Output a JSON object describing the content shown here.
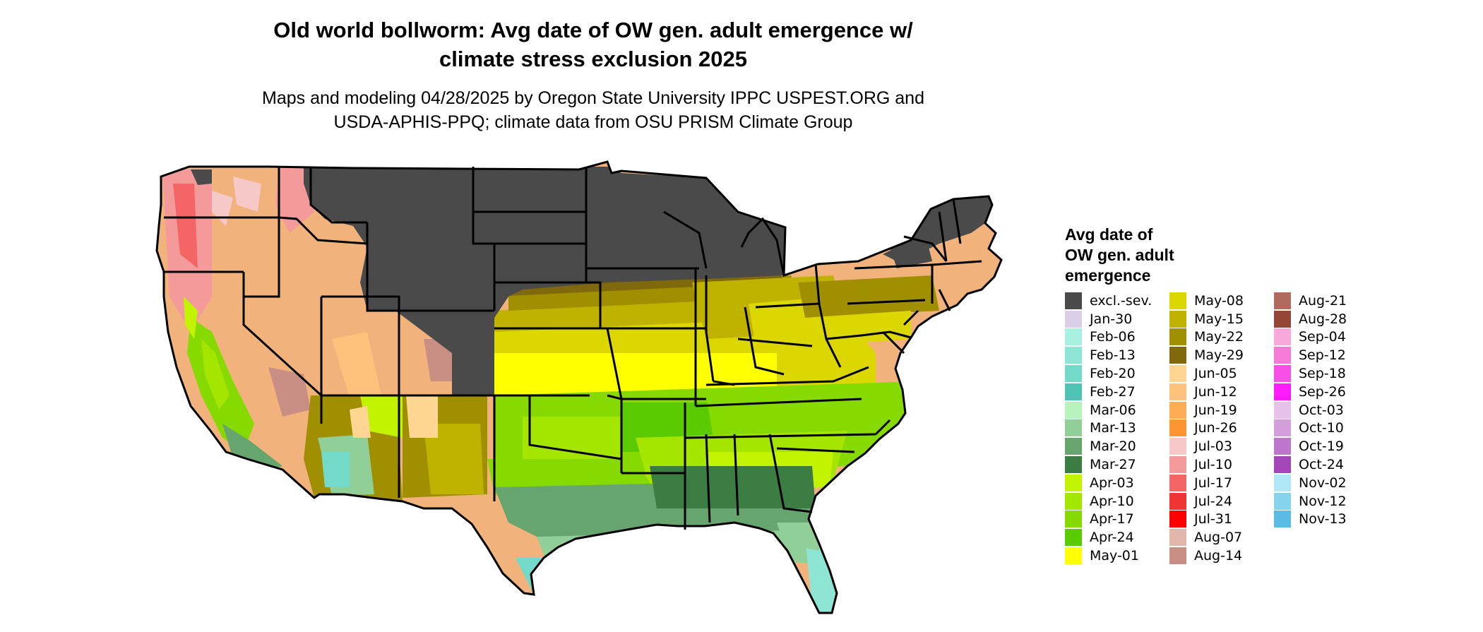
{
  "title_lines": [
    "Old world bollworm: Avg date of OW gen. adult emergence w/",
    "climate stress exclusion 2025"
  ],
  "subtitle_lines": [
    "Maps and modeling 04/28/2025 by Oregon State University IPPC USPEST.ORG and",
    "USDA-APHIS-PPQ; climate data from OSU PRISM Climate Group"
  ],
  "legend": {
    "title_lines": [
      "Avg date of",
      "OW gen. adult",
      "emergence"
    ],
    "items": [
      {
        "label": "excl.-sev.",
        "color": "#4a4a4a"
      },
      {
        "label": "Jan-30",
        "color": "#d9cfe8"
      },
      {
        "label": "Feb-06",
        "color": "#a8f0e0"
      },
      {
        "label": "Feb-13",
        "color": "#8ee5d3"
      },
      {
        "label": "Feb-20",
        "color": "#73d9c8"
      },
      {
        "label": "Feb-27",
        "color": "#50c4b4"
      },
      {
        "label": "Mar-06",
        "color": "#b8f2bd"
      },
      {
        "label": "Mar-13",
        "color": "#90cf98"
      },
      {
        "label": "Mar-20",
        "color": "#66a56e"
      },
      {
        "label": "Mar-27",
        "color": "#3b7d43"
      },
      {
        "label": "Apr-03",
        "color": "#c2f300"
      },
      {
        "label": "Apr-10",
        "color": "#a4e600"
      },
      {
        "label": "Apr-17",
        "color": "#86da00"
      },
      {
        "label": "Apr-24",
        "color": "#5acb00"
      },
      {
        "label": "May-01",
        "color": "#ffff00"
      },
      {
        "label": "May-08",
        "color": "#dcd700"
      },
      {
        "label": "May-15",
        "color": "#c0b300"
      },
      {
        "label": "May-22",
        "color": "#a08f00"
      },
      {
        "label": "May-29",
        "color": "#80690c"
      },
      {
        "label": "Jun-05",
        "color": "#ffd592"
      },
      {
        "label": "Jun-12",
        "color": "#ffc27c"
      },
      {
        "label": "Jun-19",
        "color": "#ffac56"
      },
      {
        "label": "Jun-26",
        "color": "#ff9632"
      },
      {
        "label": "Jul-03",
        "color": "#f6c8c8"
      },
      {
        "label": "Jul-10",
        "color": "#f49a9a"
      },
      {
        "label": "Jul-17",
        "color": "#f46666"
      },
      {
        "label": "Jul-24",
        "color": "#f03434"
      },
      {
        "label": "Jul-31",
        "color": "#ff0000"
      },
      {
        "label": "Aug-07",
        "color": "#e3b6ac"
      },
      {
        "label": "Aug-14",
        "color": "#c98e84"
      },
      {
        "label": "Aug-21",
        "color": "#b06a5e"
      },
      {
        "label": "Aug-28",
        "color": "#964636"
      },
      {
        "label": "Sep-04",
        "color": "#f9a8dc"
      },
      {
        "label": "Sep-12",
        "color": "#f67ad8"
      },
      {
        "label": "Sep-18",
        "color": "#f650e6"
      },
      {
        "label": "Sep-26",
        "color": "#fd1afc"
      },
      {
        "label": "Oct-03",
        "color": "#e6c2ea"
      },
      {
        "label": "Oct-10",
        "color": "#d39ed9"
      },
      {
        "label": "Oct-19",
        "color": "#bd76cb"
      },
      {
        "label": "Oct-24",
        "color": "#a448b9"
      },
      {
        "label": "Nov-02",
        "color": "#b0e8f8"
      },
      {
        "label": "Nov-12",
        "color": "#86d3ee"
      },
      {
        "label": "Nov-13",
        "color": "#5cbbe4"
      }
    ]
  },
  "map": {
    "border_color": "#000000",
    "excluded_color": "#4a4a4a"
  }
}
